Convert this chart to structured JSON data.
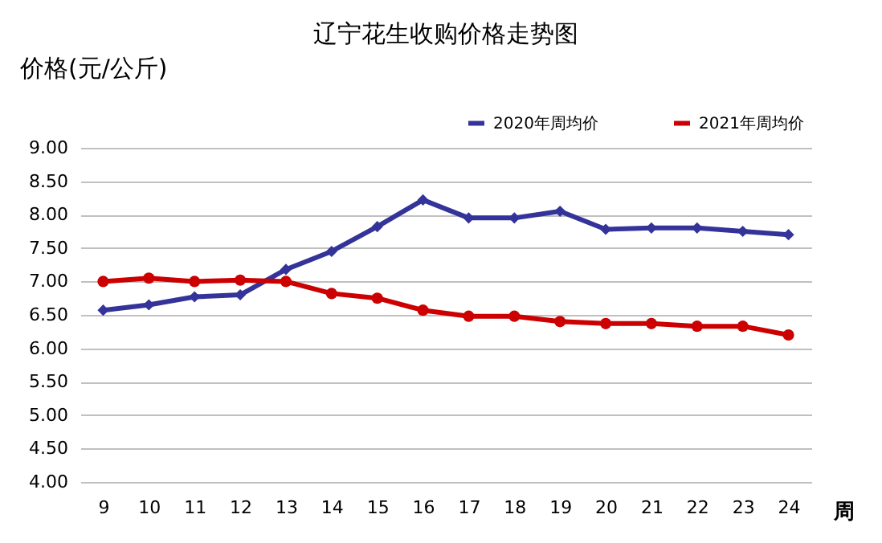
{
  "chart_data": {
    "type": "line",
    "title": "辽宁花生收购价格走势图",
    "ylabel": "价格(元/公斤)",
    "xlabel": "周",
    "categories": [
      "9",
      "10",
      "11",
      "12",
      "13",
      "14",
      "15",
      "16",
      "17",
      "18",
      "19",
      "20",
      "21",
      "22",
      "23",
      "24"
    ],
    "series": [
      {
        "name": "2020年周均价",
        "color": "#333399",
        "marker": "diamond",
        "values": [
          6.57,
          6.65,
          6.77,
          6.8,
          7.18,
          7.45,
          7.82,
          8.22,
          7.95,
          7.95,
          8.05,
          7.78,
          7.8,
          7.8,
          7.75,
          7.7
        ]
      },
      {
        "name": "2021年周均价",
        "color": "#cc0000",
        "marker": "circle",
        "values": [
          7.0,
          7.05,
          7.0,
          7.02,
          7.0,
          6.82,
          6.75,
          6.57,
          6.48,
          6.48,
          6.4,
          6.37,
          6.37,
          6.33,
          6.33,
          6.2
        ]
      }
    ],
    "ylim": [
      4,
      9
    ],
    "yticks": [
      {
        "value": 4,
        "label": "4.00"
      },
      {
        "value": 4.5,
        "label": "4.50"
      },
      {
        "value": 5,
        "label": "5.00"
      },
      {
        "value": 5.5,
        "label": "5.50"
      },
      {
        "value": 6,
        "label": "6.00"
      },
      {
        "value": 6.5,
        "label": "6.50"
      },
      {
        "value": 7,
        "label": "7.00"
      },
      {
        "value": 7.5,
        "label": "7.50"
      },
      {
        "value": 8,
        "label": "8.00"
      },
      {
        "value": 8.5,
        "label": "8.50"
      },
      {
        "value": 9,
        "label": "9.00"
      }
    ],
    "grid": "y",
    "legend": "top right",
    "line_style": "solid"
  }
}
